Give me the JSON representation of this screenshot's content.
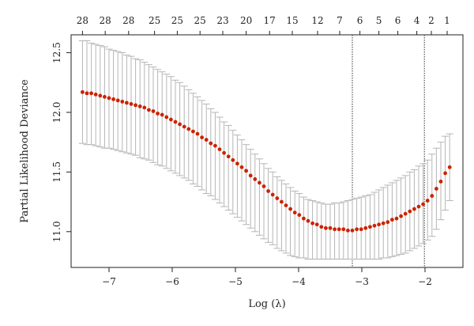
{
  "chart_data": {
    "type": "scatter",
    "title": "",
    "xlabel": "Log (λ)",
    "ylabel": "Partial Likelihood Deviance",
    "xlim": [
      -7.6,
      -1.4
    ],
    "ylim": [
      10.7,
      12.65
    ],
    "x_ticks": [
      -7,
      -6,
      -5,
      -4,
      -3,
      -2
    ],
    "y_ticks": [
      11.0,
      11.5,
      12.0,
      12.5
    ],
    "top_axis": {
      "positions": [
        -7.42,
        -7.06,
        -6.69,
        -6.28,
        -5.92,
        -5.56,
        -5.2,
        -4.83,
        -4.46,
        -4.1,
        -3.7,
        -3.35,
        -3.03,
        -2.73,
        -2.43,
        -2.13,
        -1.9,
        -1.65
      ],
      "labels": [
        "28",
        "28",
        "28",
        "25",
        "25",
        "25",
        "23",
        "20",
        "17",
        "15",
        "12",
        "7",
        "6",
        "5",
        "6",
        "4",
        "2",
        "1"
      ]
    },
    "vlines": [
      -3.15,
      -2.01
    ],
    "grid": false,
    "legend": "none",
    "point_color": "#cc2200",
    "errorbar_color": "#b5b5b5",
    "series": [
      {
        "x": [
          -7.42,
          -7.35,
          -7.28,
          -7.21,
          -7.14,
          -7.07,
          -7.0,
          -6.93,
          -6.86,
          -6.79,
          -6.72,
          -6.65,
          -6.58,
          -6.51,
          -6.44,
          -6.37,
          -6.3,
          -6.23,
          -6.16,
          -6.09,
          -6.02,
          -5.95,
          -5.88,
          -5.81,
          -5.74,
          -5.67,
          -5.6,
          -5.53,
          -5.46,
          -5.39,
          -5.32,
          -5.25,
          -5.18,
          -5.11,
          -5.04,
          -4.97,
          -4.9,
          -4.83,
          -4.76,
          -4.69,
          -4.62,
          -4.55,
          -4.48,
          -4.41,
          -4.34,
          -4.27,
          -4.2,
          -4.13,
          -4.06,
          -3.99,
          -3.92,
          -3.85,
          -3.78,
          -3.71,
          -3.64,
          -3.57,
          -3.5,
          -3.43,
          -3.36,
          -3.29,
          -3.22,
          -3.15,
          -3.08,
          -3.01,
          -2.94,
          -2.87,
          -2.8,
          -2.73,
          -2.66,
          -2.59,
          -2.52,
          -2.45,
          -2.38,
          -2.31,
          -2.24,
          -2.17,
          -2.1,
          -2.03,
          -1.96,
          -1.89,
          -1.82,
          -1.75,
          -1.68,
          -1.61
        ],
        "y": [
          12.17,
          12.16,
          12.16,
          12.15,
          12.14,
          12.13,
          12.12,
          12.11,
          12.1,
          12.09,
          12.08,
          12.07,
          12.06,
          12.05,
          12.04,
          12.02,
          12.01,
          11.99,
          11.98,
          11.96,
          11.94,
          11.92,
          11.9,
          11.88,
          11.86,
          11.84,
          11.82,
          11.79,
          11.77,
          11.74,
          11.72,
          11.69,
          11.66,
          11.63,
          11.6,
          11.57,
          11.54,
          11.51,
          11.47,
          11.44,
          11.41,
          11.38,
          11.34,
          11.31,
          11.28,
          11.25,
          11.22,
          11.19,
          11.16,
          11.14,
          11.11,
          11.09,
          11.07,
          11.06,
          11.04,
          11.03,
          11.03,
          11.02,
          11.02,
          11.02,
          11.01,
          11.01,
          11.02,
          11.02,
          11.03,
          11.04,
          11.05,
          11.06,
          11.07,
          11.08,
          11.1,
          11.11,
          11.13,
          11.15,
          11.17,
          11.19,
          11.21,
          11.23,
          11.26,
          11.3,
          11.36,
          11.42,
          11.49,
          11.54
        ],
        "y_upper": [
          12.6,
          12.6,
          12.58,
          12.57,
          12.56,
          12.55,
          12.53,
          12.52,
          12.51,
          12.5,
          12.48,
          12.47,
          12.45,
          12.44,
          12.42,
          12.4,
          12.38,
          12.36,
          12.34,
          12.32,
          12.3,
          12.27,
          12.25,
          12.22,
          12.19,
          12.16,
          12.13,
          12.1,
          12.07,
          12.03,
          12.0,
          11.96,
          11.92,
          11.89,
          11.85,
          11.81,
          11.77,
          11.73,
          11.69,
          11.65,
          11.61,
          11.57,
          11.53,
          11.5,
          11.46,
          11.43,
          11.4,
          11.37,
          11.34,
          11.32,
          11.29,
          11.27,
          11.26,
          11.25,
          11.24,
          11.23,
          11.23,
          11.24,
          11.24,
          11.25,
          11.26,
          11.27,
          11.28,
          11.29,
          11.3,
          11.31,
          11.33,
          11.35,
          11.37,
          11.39,
          11.41,
          11.43,
          11.45,
          11.47,
          11.5,
          11.52,
          11.55,
          11.57,
          11.6,
          11.65,
          11.7,
          11.75,
          11.8,
          11.82
        ],
        "y_lower": [
          11.74,
          11.73,
          11.73,
          11.72,
          11.71,
          11.7,
          11.7,
          11.69,
          11.68,
          11.67,
          11.66,
          11.65,
          11.64,
          11.62,
          11.61,
          11.6,
          11.58,
          11.56,
          11.55,
          11.53,
          11.51,
          11.49,
          11.47,
          11.45,
          11.43,
          11.4,
          11.38,
          11.35,
          11.32,
          11.3,
          11.27,
          11.24,
          11.21,
          11.18,
          11.15,
          11.12,
          11.09,
          11.06,
          11.03,
          11.0,
          10.97,
          10.94,
          10.91,
          10.89,
          10.86,
          10.84,
          10.82,
          10.8,
          10.79,
          10.78,
          10.78,
          10.77,
          10.77,
          10.77,
          10.77,
          10.77,
          10.77,
          10.77,
          10.77,
          10.77,
          10.77,
          10.77,
          10.77,
          10.77,
          10.77,
          10.77,
          10.77,
          10.77,
          10.78,
          10.78,
          10.79,
          10.8,
          10.81,
          10.82,
          10.84,
          10.86,
          10.88,
          10.9,
          10.93,
          10.96,
          11.02,
          11.1,
          11.18,
          11.26
        ]
      }
    ]
  }
}
